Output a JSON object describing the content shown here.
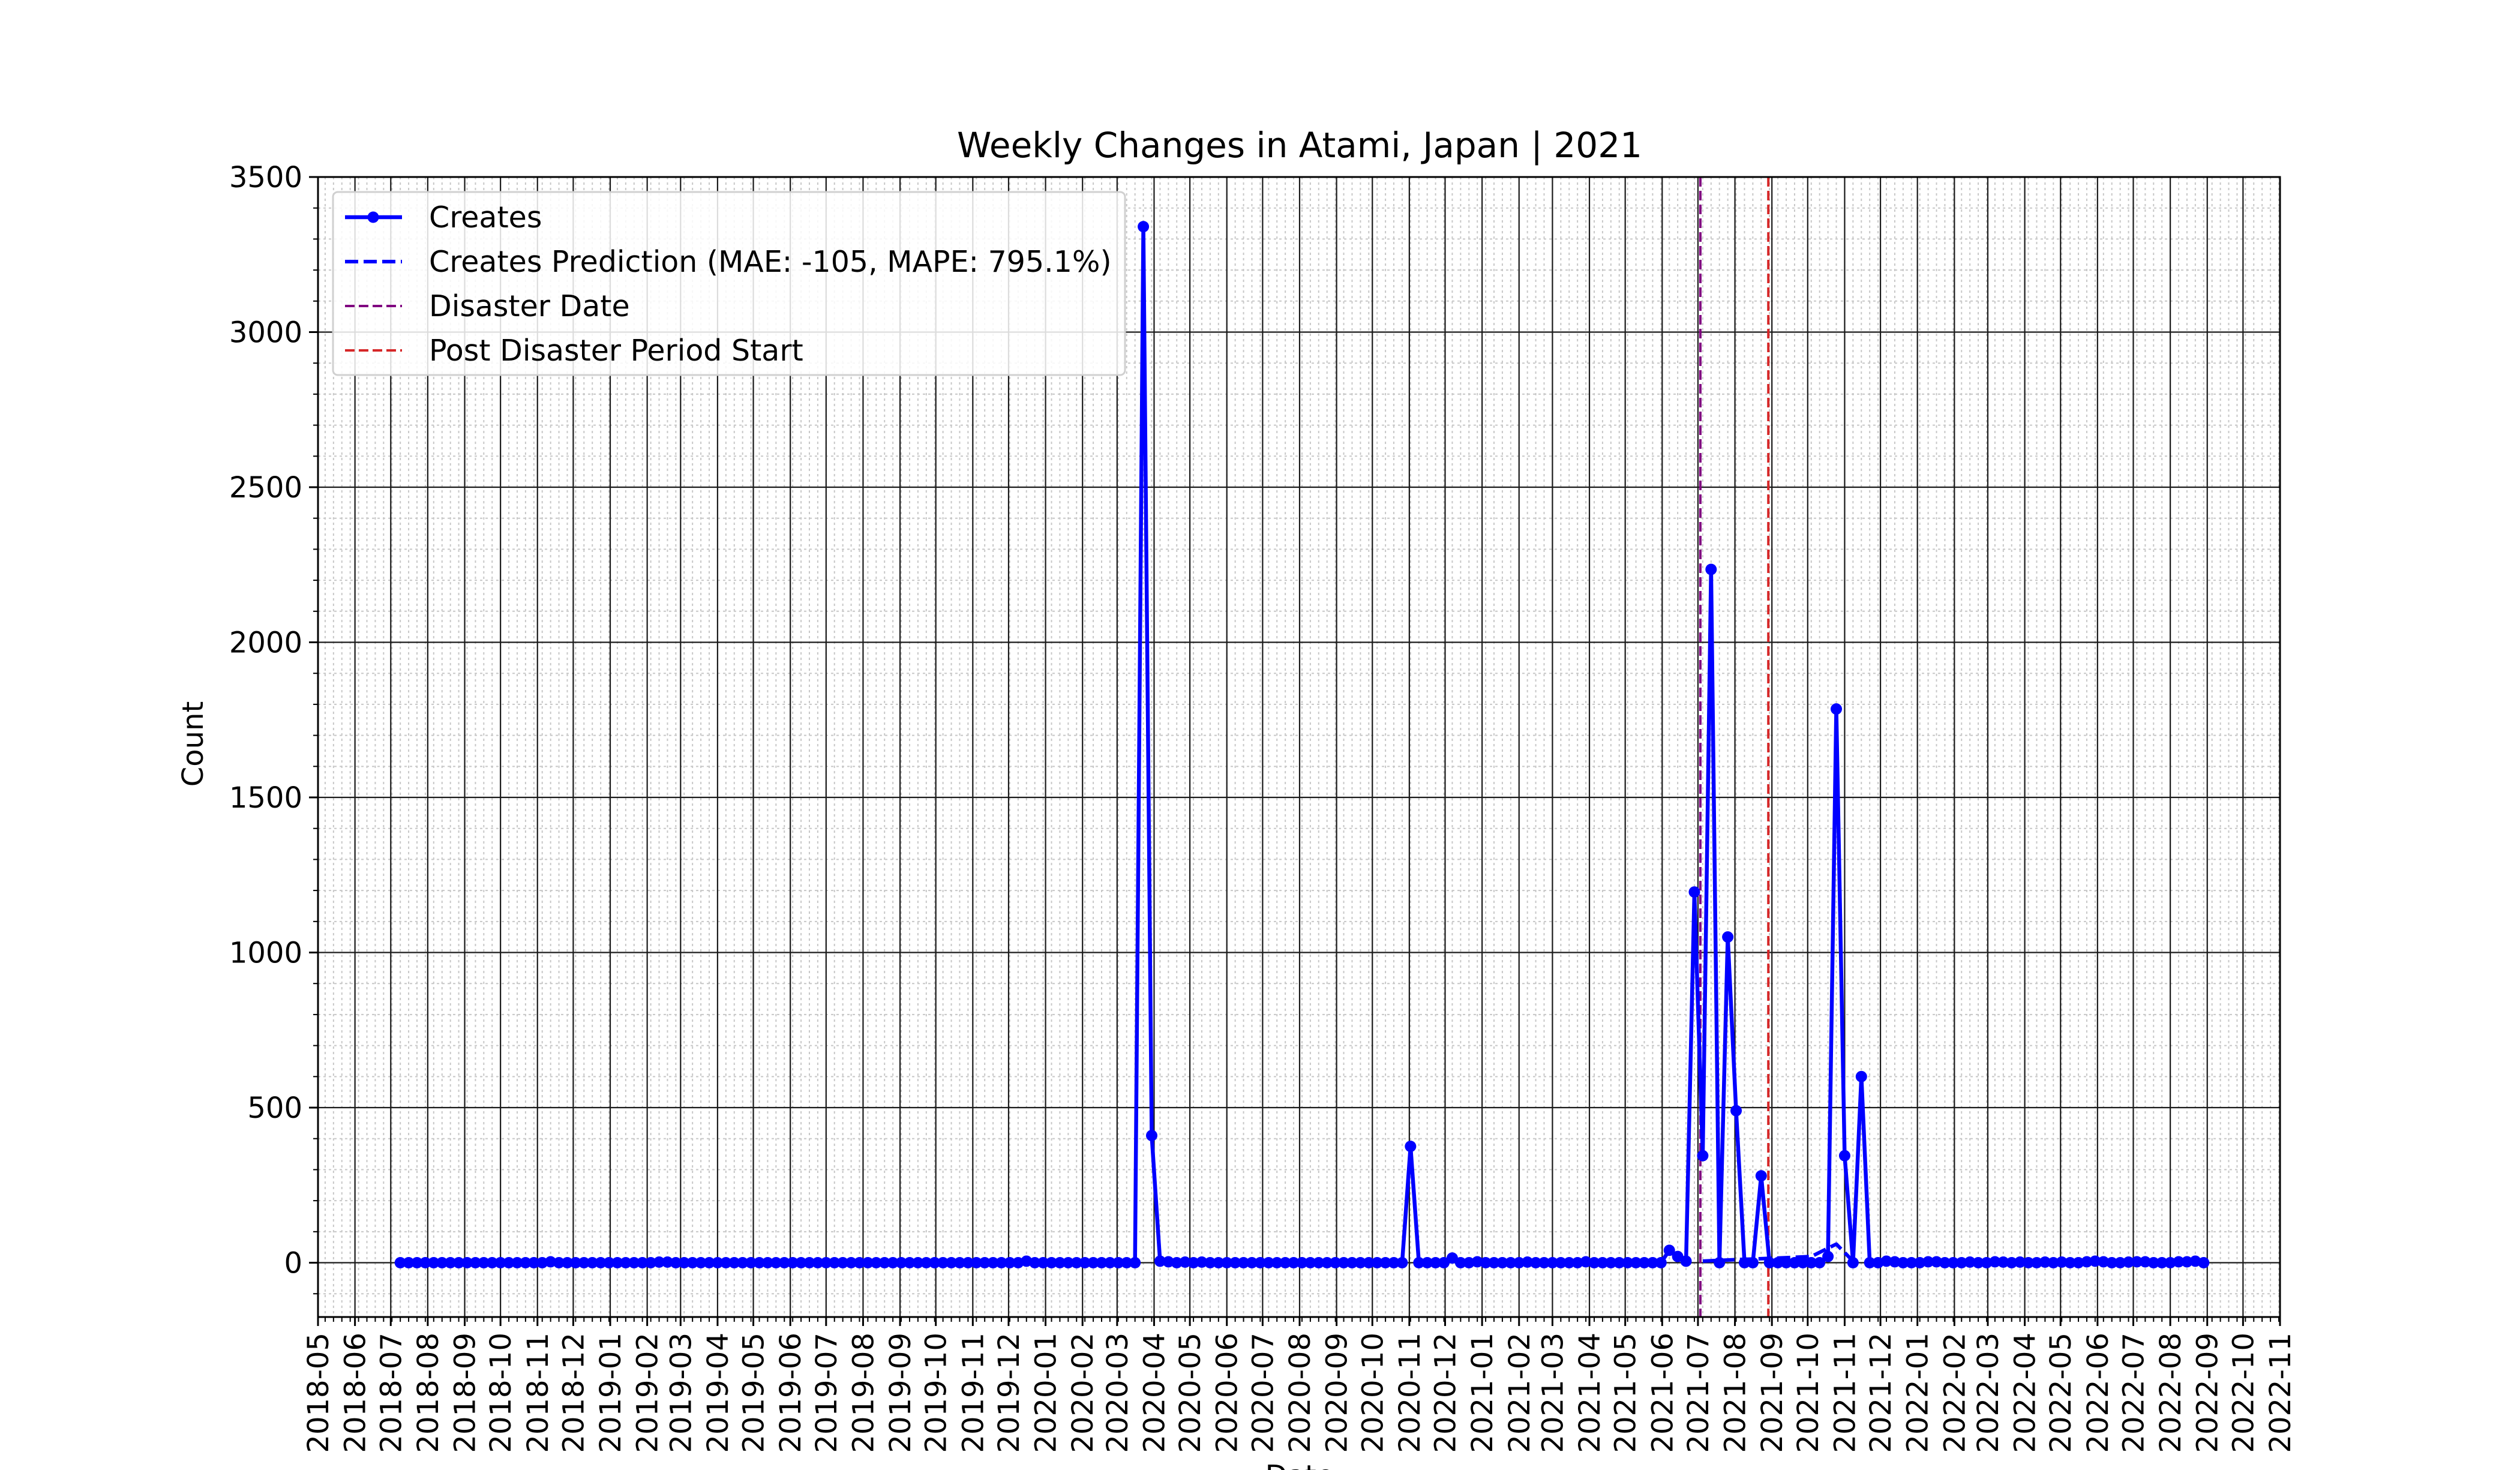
{
  "chart_data": {
    "type": "line",
    "title": "Weekly Changes in Atami, Japan | 2021",
    "xlabel": "Date",
    "ylabel": "Count",
    "ylim": [
      -175,
      3500
    ],
    "xlim": [
      "2018-05-01",
      "2022-11-01"
    ],
    "x_axis_type": "date",
    "grid": {
      "major": true,
      "minor": true
    },
    "legend_position": "top-left",
    "x_tick_labels": [
      "2018-05",
      "2018-06",
      "2018-07",
      "2018-08",
      "2018-09",
      "2018-10",
      "2018-11",
      "2018-12",
      "2019-01",
      "2019-02",
      "2019-03",
      "2019-04",
      "2019-05",
      "2019-06",
      "2019-07",
      "2019-08",
      "2019-09",
      "2019-10",
      "2019-11",
      "2019-12",
      "2020-01",
      "2020-02",
      "2020-03",
      "2020-04",
      "2020-05",
      "2020-06",
      "2020-07",
      "2020-08",
      "2020-09",
      "2020-10",
      "2020-11",
      "2020-12",
      "2021-01",
      "2021-02",
      "2021-03",
      "2021-04",
      "2021-05",
      "2021-06",
      "2021-07",
      "2021-08",
      "2021-09",
      "2021-10",
      "2021-11",
      "2021-12",
      "2022-01",
      "2022-02",
      "2022-03",
      "2022-04",
      "2022-05",
      "2022-06",
      "2022-07",
      "2022-08",
      "2022-09",
      "2022-10",
      "2022-11"
    ],
    "y_ticks": [
      0,
      500,
      1000,
      1500,
      2000,
      2500,
      3000,
      3500
    ],
    "series": [
      {
        "name": "Creates",
        "color": "#0000ff",
        "style": "solid-markers",
        "points": [
          [
            "2018-07-09",
            0
          ],
          [
            "2018-07-16",
            0
          ],
          [
            "2018-07-23",
            0
          ],
          [
            "2018-07-30",
            0
          ],
          [
            "2018-08-06",
            0
          ],
          [
            "2018-08-13",
            0
          ],
          [
            "2018-08-20",
            0
          ],
          [
            "2018-08-27",
            0
          ],
          [
            "2018-09-03",
            0
          ],
          [
            "2018-09-10",
            0
          ],
          [
            "2018-09-17",
            0
          ],
          [
            "2018-09-24",
            0
          ],
          [
            "2018-10-01",
            0
          ],
          [
            "2018-10-08",
            0
          ],
          [
            "2018-10-15",
            0
          ],
          [
            "2018-10-22",
            0
          ],
          [
            "2018-10-29",
            0
          ],
          [
            "2018-11-05",
            0
          ],
          [
            "2018-11-12",
            3
          ],
          [
            "2018-11-19",
            0
          ],
          [
            "2018-11-26",
            0
          ],
          [
            "2018-12-03",
            0
          ],
          [
            "2018-12-10",
            0
          ],
          [
            "2018-12-17",
            0
          ],
          [
            "2018-12-24",
            0
          ],
          [
            "2018-12-31",
            0
          ],
          [
            "2019-01-07",
            0
          ],
          [
            "2019-01-14",
            0
          ],
          [
            "2019-01-21",
            0
          ],
          [
            "2019-01-28",
            0
          ],
          [
            "2019-02-04",
            0
          ],
          [
            "2019-02-11",
            2
          ],
          [
            "2019-02-18",
            2
          ],
          [
            "2019-02-25",
            0
          ],
          [
            "2019-03-04",
            0
          ],
          [
            "2019-03-11",
            0
          ],
          [
            "2019-03-18",
            0
          ],
          [
            "2019-03-25",
            0
          ],
          [
            "2019-04-01",
            0
          ],
          [
            "2019-04-08",
            0
          ],
          [
            "2019-04-15",
            0
          ],
          [
            "2019-04-22",
            0
          ],
          [
            "2019-04-29",
            0
          ],
          [
            "2019-05-06",
            0
          ],
          [
            "2019-05-13",
            0
          ],
          [
            "2019-05-20",
            0
          ],
          [
            "2019-05-27",
            0
          ],
          [
            "2019-06-03",
            0
          ],
          [
            "2019-06-10",
            0
          ],
          [
            "2019-06-17",
            0
          ],
          [
            "2019-06-24",
            0
          ],
          [
            "2019-07-01",
            0
          ],
          [
            "2019-07-08",
            0
          ],
          [
            "2019-07-15",
            0
          ],
          [
            "2019-07-22",
            0
          ],
          [
            "2019-07-29",
            0
          ],
          [
            "2019-08-05",
            0
          ],
          [
            "2019-08-12",
            0
          ],
          [
            "2019-08-19",
            0
          ],
          [
            "2019-08-26",
            0
          ],
          [
            "2019-09-02",
            0
          ],
          [
            "2019-09-09",
            0
          ],
          [
            "2019-09-16",
            0
          ],
          [
            "2019-09-23",
            0
          ],
          [
            "2019-09-30",
            0
          ],
          [
            "2019-10-07",
            0
          ],
          [
            "2019-10-14",
            0
          ],
          [
            "2019-10-21",
            0
          ],
          [
            "2019-10-28",
            0
          ],
          [
            "2019-11-04",
            0
          ],
          [
            "2019-11-11",
            0
          ],
          [
            "2019-11-18",
            0
          ],
          [
            "2019-11-25",
            0
          ],
          [
            "2019-12-02",
            0
          ],
          [
            "2019-12-09",
            0
          ],
          [
            "2019-12-16",
            5
          ],
          [
            "2019-12-23",
            0
          ],
          [
            "2019-12-30",
            0
          ],
          [
            "2020-01-06",
            0
          ],
          [
            "2020-01-13",
            0
          ],
          [
            "2020-01-20",
            0
          ],
          [
            "2020-01-27",
            0
          ],
          [
            "2020-02-03",
            0
          ],
          [
            "2020-02-10",
            0
          ],
          [
            "2020-02-17",
            0
          ],
          [
            "2020-02-24",
            0
          ],
          [
            "2020-03-02",
            0
          ],
          [
            "2020-03-09",
            0
          ],
          [
            "2020-03-16",
            0
          ],
          [
            "2020-03-23",
            3340
          ],
          [
            "2020-03-30",
            410
          ],
          [
            "2020-04-06",
            5
          ],
          [
            "2020-04-13",
            3
          ],
          [
            "2020-04-20",
            0
          ],
          [
            "2020-04-27",
            2
          ],
          [
            "2020-05-04",
            0
          ],
          [
            "2020-05-11",
            2
          ],
          [
            "2020-05-18",
            0
          ],
          [
            "2020-05-25",
            0
          ],
          [
            "2020-06-01",
            0
          ],
          [
            "2020-06-08",
            0
          ],
          [
            "2020-06-15",
            0
          ],
          [
            "2020-06-22",
            0
          ],
          [
            "2020-06-29",
            0
          ],
          [
            "2020-07-06",
            0
          ],
          [
            "2020-07-13",
            0
          ],
          [
            "2020-07-20",
            0
          ],
          [
            "2020-07-27",
            0
          ],
          [
            "2020-08-03",
            0
          ],
          [
            "2020-08-10",
            0
          ],
          [
            "2020-08-17",
            0
          ],
          [
            "2020-08-24",
            0
          ],
          [
            "2020-08-31",
            0
          ],
          [
            "2020-09-07",
            0
          ],
          [
            "2020-09-14",
            0
          ],
          [
            "2020-09-21",
            0
          ],
          [
            "2020-09-28",
            0
          ],
          [
            "2020-10-05",
            0
          ],
          [
            "2020-10-12",
            0
          ],
          [
            "2020-10-19",
            0
          ],
          [
            "2020-10-26",
            0
          ],
          [
            "2020-11-02",
            375
          ],
          [
            "2020-11-09",
            0
          ],
          [
            "2020-11-16",
            0
          ],
          [
            "2020-11-23",
            0
          ],
          [
            "2020-11-30",
            0
          ],
          [
            "2020-12-07",
            15
          ],
          [
            "2020-12-14",
            0
          ],
          [
            "2020-12-21",
            0
          ],
          [
            "2020-12-28",
            3
          ],
          [
            "2021-01-04",
            0
          ],
          [
            "2021-01-11",
            0
          ],
          [
            "2021-01-18",
            0
          ],
          [
            "2021-01-25",
            0
          ],
          [
            "2021-02-01",
            0
          ],
          [
            "2021-02-08",
            2
          ],
          [
            "2021-02-15",
            0
          ],
          [
            "2021-02-22",
            0
          ],
          [
            "2021-03-01",
            0
          ],
          [
            "2021-03-08",
            0
          ],
          [
            "2021-03-15",
            0
          ],
          [
            "2021-03-22",
            0
          ],
          [
            "2021-03-29",
            3
          ],
          [
            "2021-04-05",
            0
          ],
          [
            "2021-04-12",
            0
          ],
          [
            "2021-04-19",
            0
          ],
          [
            "2021-04-26",
            0
          ],
          [
            "2021-05-03",
            0
          ],
          [
            "2021-05-10",
            0
          ],
          [
            "2021-05-17",
            0
          ],
          [
            "2021-05-24",
            0
          ],
          [
            "2021-05-31",
            0
          ],
          [
            "2021-06-07",
            40
          ],
          [
            "2021-06-14",
            20
          ],
          [
            "2021-06-21",
            5
          ],
          [
            "2021-06-28",
            1195
          ],
          [
            "2021-07-05",
            345
          ],
          [
            "2021-07-12",
            2235
          ],
          [
            "2021-07-19",
            0
          ],
          [
            "2021-07-26",
            1050
          ],
          [
            "2021-08-02",
            490
          ],
          [
            "2021-08-09",
            0
          ],
          [
            "2021-08-16",
            0
          ],
          [
            "2021-08-23",
            280
          ],
          [
            "2021-08-30",
            0
          ],
          [
            "2021-09-06",
            0
          ],
          [
            "2021-09-13",
            0
          ],
          [
            "2021-09-20",
            0
          ],
          [
            "2021-09-27",
            0
          ],
          [
            "2021-10-04",
            0
          ],
          [
            "2021-10-11",
            0
          ],
          [
            "2021-10-18",
            20
          ],
          [
            "2021-10-25",
            1785
          ],
          [
            "2021-11-01",
            345
          ],
          [
            "2021-11-08",
            0
          ],
          [
            "2021-11-15",
            600
          ],
          [
            "2021-11-22",
            0
          ],
          [
            "2021-11-29",
            0
          ],
          [
            "2021-12-06",
            5
          ],
          [
            "2021-12-13",
            3
          ],
          [
            "2021-12-20",
            0
          ],
          [
            "2021-12-27",
            0
          ],
          [
            "2022-01-03",
            0
          ],
          [
            "2022-01-10",
            3
          ],
          [
            "2022-01-17",
            3
          ],
          [
            "2022-01-24",
            0
          ],
          [
            "2022-01-31",
            0
          ],
          [
            "2022-02-07",
            0
          ],
          [
            "2022-02-14",
            2
          ],
          [
            "2022-02-21",
            0
          ],
          [
            "2022-02-28",
            0
          ],
          [
            "2022-03-07",
            3
          ],
          [
            "2022-03-14",
            2
          ],
          [
            "2022-03-21",
            0
          ],
          [
            "2022-03-28",
            2
          ],
          [
            "2022-04-04",
            0
          ],
          [
            "2022-04-11",
            0
          ],
          [
            "2022-04-18",
            2
          ],
          [
            "2022-04-25",
            0
          ],
          [
            "2022-05-02",
            2
          ],
          [
            "2022-05-09",
            0
          ],
          [
            "2022-05-16",
            0
          ],
          [
            "2022-05-23",
            3
          ],
          [
            "2022-05-30",
            5
          ],
          [
            "2022-06-06",
            3
          ],
          [
            "2022-06-13",
            0
          ],
          [
            "2022-06-20",
            0
          ],
          [
            "2022-06-27",
            2
          ],
          [
            "2022-07-04",
            3
          ],
          [
            "2022-07-11",
            3
          ],
          [
            "2022-07-18",
            0
          ],
          [
            "2022-07-25",
            0
          ],
          [
            "2022-08-01",
            0
          ],
          [
            "2022-08-08",
            3
          ],
          [
            "2022-08-15",
            3
          ],
          [
            "2022-08-22",
            5
          ],
          [
            "2022-08-29",
            0
          ]
        ]
      },
      {
        "name": "Creates Prediction (MAE: -105, MAPE: 795.1%)",
        "color": "#0000ff",
        "style": "dashed",
        "points": [
          [
            "2021-07-05",
            5
          ],
          [
            "2021-08-02",
            10
          ],
          [
            "2021-09-06",
            15
          ],
          [
            "2021-10-04",
            20
          ],
          [
            "2021-10-25",
            60
          ],
          [
            "2021-11-08",
            5
          ]
        ]
      }
    ],
    "vertical_lines": [
      {
        "name": "Disaster Date",
        "date": "2021-07-03",
        "color": "#800080",
        "style": "dashed"
      },
      {
        "name": "Post Disaster Period Start",
        "date": "2021-08-29",
        "color": "#d62728",
        "style": "dashed"
      }
    ]
  }
}
